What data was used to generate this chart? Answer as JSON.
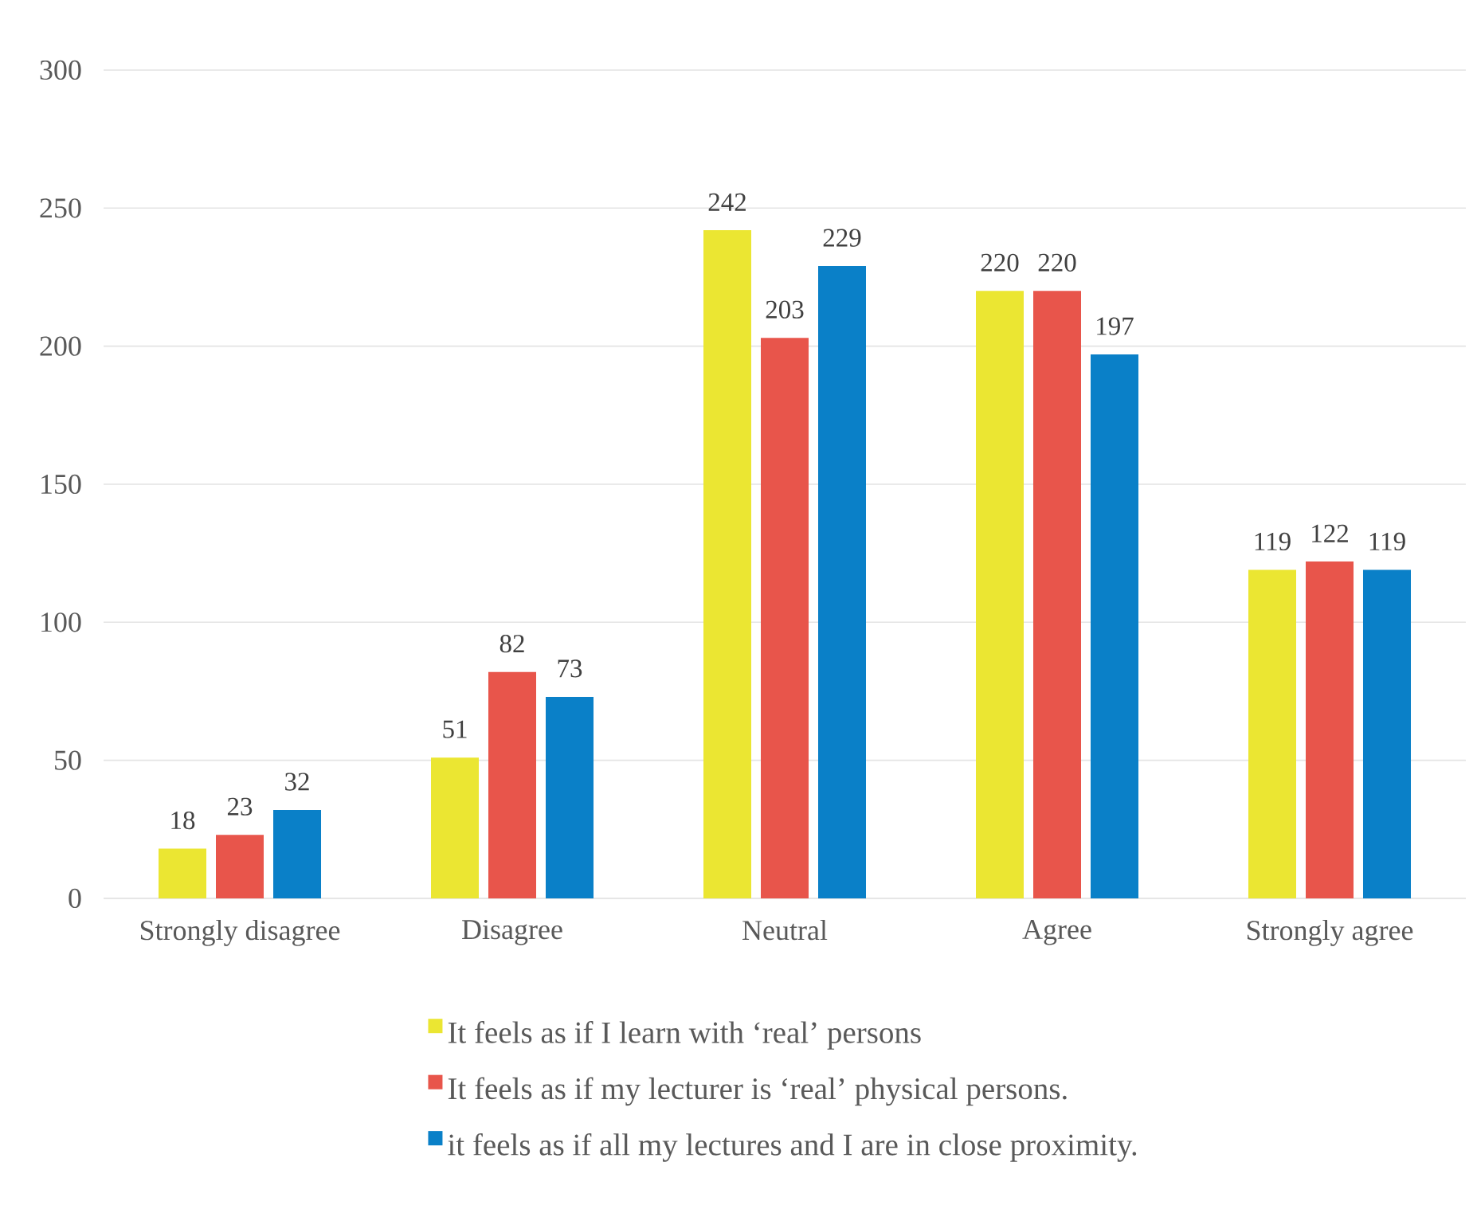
{
  "chart_data": {
    "type": "bar",
    "categories": [
      "Strongly disagree",
      "Disagree",
      "Neutral",
      "Agree",
      "Strongly agree"
    ],
    "series": [
      {
        "name": "It feels as if I learn with ‘real’ persons",
        "color": "#ebe632",
        "values": [
          18,
          51,
          242,
          220,
          119
        ]
      },
      {
        "name": "It feels as if my lecturer is ‘real’ physical persons.",
        "color": "#e8554b",
        "values": [
          23,
          82,
          203,
          220,
          122
        ]
      },
      {
        "name": "it feels as if all my lectures and I are in close proximity.",
        "color": "#0a80c8",
        "values": [
          32,
          73,
          229,
          197,
          119
        ]
      }
    ],
    "ylim": [
      0,
      300
    ],
    "yticks": [
      0,
      50,
      100,
      150,
      200,
      250,
      300
    ],
    "grid": "y",
    "data_labels": true,
    "legend": "bottom"
  }
}
